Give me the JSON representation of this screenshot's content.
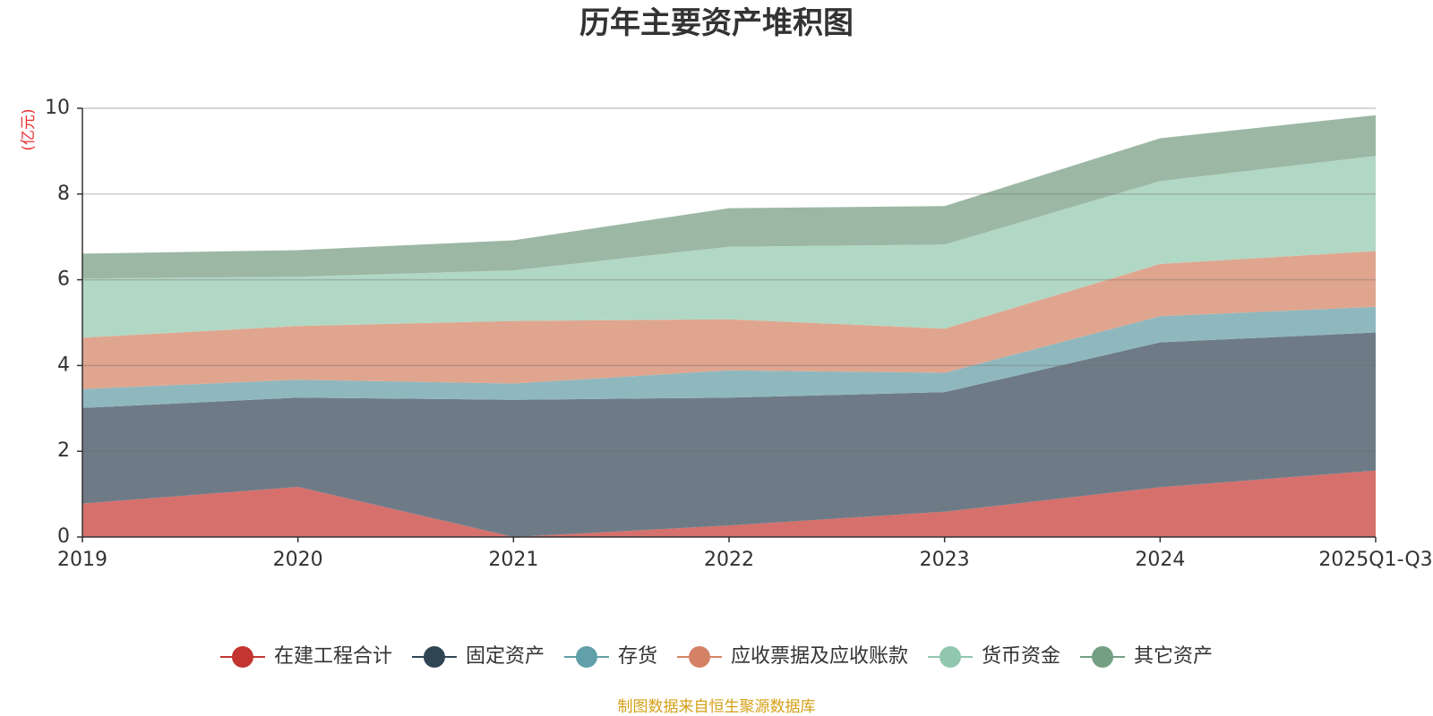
{
  "chart_data": {
    "type": "area",
    "stacked": true,
    "title": "历年主要资产堆积图",
    "ylabel": "(亿元)",
    "xlabel": "",
    "ylim": [
      0,
      10
    ],
    "yticks": [
      0,
      2,
      4,
      6,
      8,
      10
    ],
    "categories": [
      "2019",
      "2020",
      "2021",
      "2022",
      "2023",
      "2024",
      "2025Q1-Q3"
    ],
    "series": [
      {
        "name": "在建工程合计",
        "color": "#d6706c",
        "legend_color": "#c23531",
        "values": [
          0.78,
          1.17,
          0.0,
          0.27,
          0.59,
          1.16,
          1.55
        ]
      },
      {
        "name": "固定资产",
        "color": "#6e7b87",
        "legend_color": "#2f4554",
        "values": [
          2.23,
          2.08,
          3.2,
          2.98,
          2.79,
          3.38,
          3.22
        ]
      },
      {
        "name": "存货",
        "color": "#8fb8be",
        "legend_color": "#61a0a8",
        "values": [
          0.44,
          0.42,
          0.38,
          0.64,
          0.45,
          0.61,
          0.6
        ]
      },
      {
        "name": "应收票据及应收账款",
        "color": "#e0a58f",
        "legend_color": "#d48265",
        "values": [
          1.2,
          1.25,
          1.46,
          1.19,
          1.03,
          1.22,
          1.3
        ]
      },
      {
        "name": "货币资金",
        "color": "#b1d8c4",
        "legend_color": "#91c7ae",
        "values": [
          1.38,
          1.15,
          1.18,
          1.69,
          1.96,
          1.93,
          2.22
        ]
      },
      {
        "name": "其它资产",
        "color": "#9cb8a4",
        "legend_color": "#749f83",
        "values": [
          0.58,
          0.62,
          0.7,
          0.9,
          0.9,
          1.0,
          0.95
        ]
      }
    ],
    "legend_position": "bottom-center",
    "grid": true
  },
  "source_note": "制图数据来自恒生聚源数据库"
}
